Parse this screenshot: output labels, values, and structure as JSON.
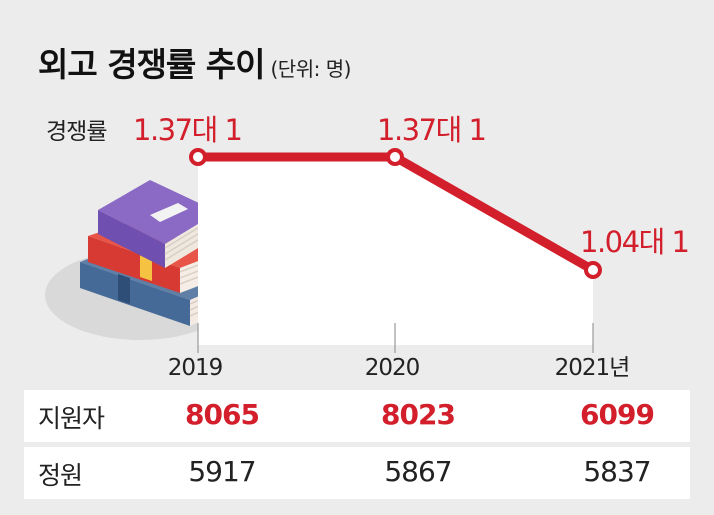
{
  "header": {
    "title": "외고 경쟁률 추이",
    "unit": "(단위: 명)"
  },
  "chart_data": {
    "type": "line",
    "title": "외고 경쟁률 추이",
    "unit": "(단위: 명)",
    "series_label": "경쟁률",
    "x": [
      "2019",
      "2020",
      "2021년"
    ],
    "values": [
      1.37,
      1.37,
      1.04
    ],
    "value_labels": [
      "1.37대 1",
      "1.37대 1",
      "1.04대 1"
    ],
    "color": "#d21f2b"
  },
  "table": {
    "rows": [
      {
        "label": "지원자",
        "values": [
          "8065",
          "8023",
          "6099"
        ],
        "color": "#d21f2b"
      },
      {
        "label": "정원",
        "values": [
          "5917",
          "5867",
          "5837"
        ],
        "color": "#222222"
      }
    ]
  }
}
